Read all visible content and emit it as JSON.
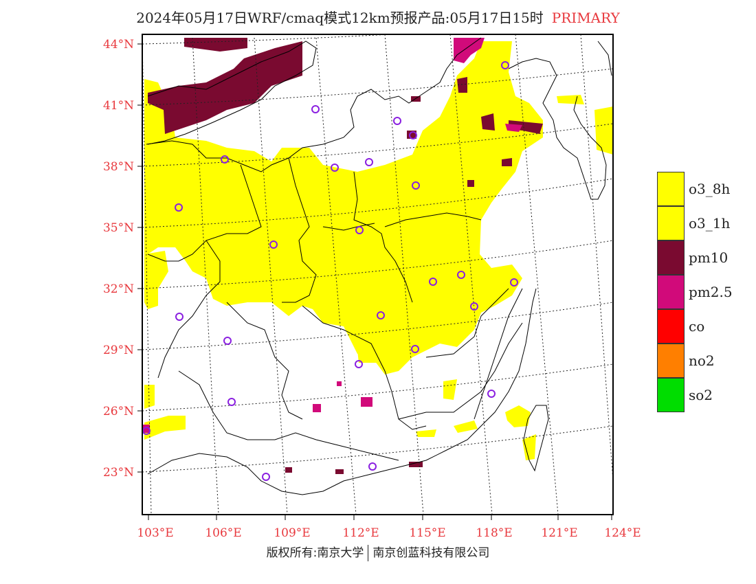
{
  "title": {
    "main": "2024年05月17日WRF/cmaq模式12km预报产品:05月17日15时",
    "tag": "PRIMARY"
  },
  "axes": {
    "lat_labels": [
      "44°N",
      "41°N",
      "38°N",
      "35°N",
      "32°N",
      "29°N",
      "26°N",
      "23°N"
    ],
    "lon_labels": [
      "103°E",
      "106°E",
      "109°E",
      "112°E",
      "115°E",
      "118°E",
      "121°E",
      "124°E"
    ],
    "label_color": "#e8383d"
  },
  "legend": [
    {
      "label": "o3_8h",
      "color": "#ffff00"
    },
    {
      "label": "o3_1h",
      "color": "#ffff00"
    },
    {
      "label": "pm10",
      "color": "#7a0a30"
    },
    {
      "label": "pm2.5",
      "color": "#d10a7a"
    },
    {
      "label": "co",
      "color": "#ff0000"
    },
    {
      "label": "no2",
      "color": "#ff7f00"
    },
    {
      "label": "so2",
      "color": "#00dd00"
    }
  ],
  "footer": {
    "left": "版权所有:南京大学",
    "right": "南京创蓝科技有限公司"
  }
}
